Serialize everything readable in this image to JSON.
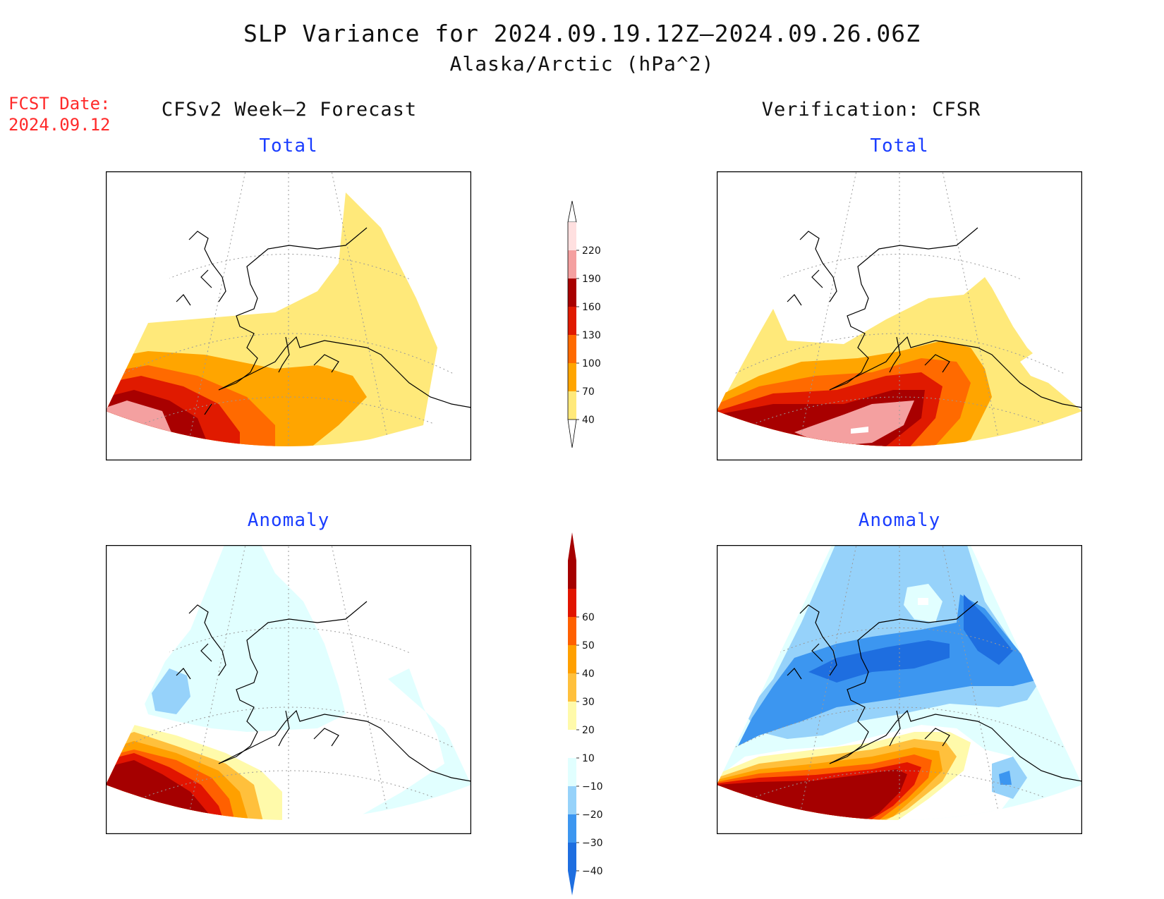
{
  "title": "SLP Variance for 2024.09.19.12Z–2024.09.26.06Z",
  "subtitle": "Alaska/Arctic (hPa^2)",
  "forecast_date": {
    "label": "FCST Date:",
    "value": "2024.09.12"
  },
  "columns": {
    "left": "CFSv2 Week–2 Forecast",
    "right": "Verification: CFSR"
  },
  "panels": {
    "forecast_total": {
      "label": "Total"
    },
    "verification_total": {
      "label": "Total"
    },
    "forecast_anomaly": {
      "label": "Anomaly"
    },
    "verification_anomaly": {
      "label": "Anomaly"
    }
  },
  "colorbars": {
    "total": {
      "levels": [
        {
          "label": "40",
          "color": "#ffe97a"
        },
        {
          "label": "70",
          "color": "#ffa500"
        },
        {
          "label": "100",
          "color": "#ff6a00"
        },
        {
          "label": "130",
          "color": "#e01a00"
        },
        {
          "label": "160",
          "color": "#a80000"
        },
        {
          "label": "190",
          "color": "#f4a0a0"
        },
        {
          "label": "220",
          "color": "#ffe0e0"
        }
      ],
      "below_color": "#ffffff"
    },
    "anomaly": {
      "levels": [
        {
          "label": "−40",
          "color": "#1e6ee0"
        },
        {
          "label": "−30",
          "color": "#3c96f0"
        },
        {
          "label": "−20",
          "color": "#96d2fa"
        },
        {
          "label": "−10",
          "color": "#e1ffff"
        },
        {
          "label": "10",
          "color": "#ffffff"
        },
        {
          "label": "20",
          "color": "#fffaaa"
        },
        {
          "label": "30",
          "color": "#ffc03c"
        },
        {
          "label": "40",
          "color": "#ffa000"
        },
        {
          "label": "50",
          "color": "#ff6000"
        },
        {
          "label": "60",
          "color": "#e11400"
        }
      ],
      "top_color": "#a50000",
      "bottom_color": "#1e6ee0"
    }
  }
}
